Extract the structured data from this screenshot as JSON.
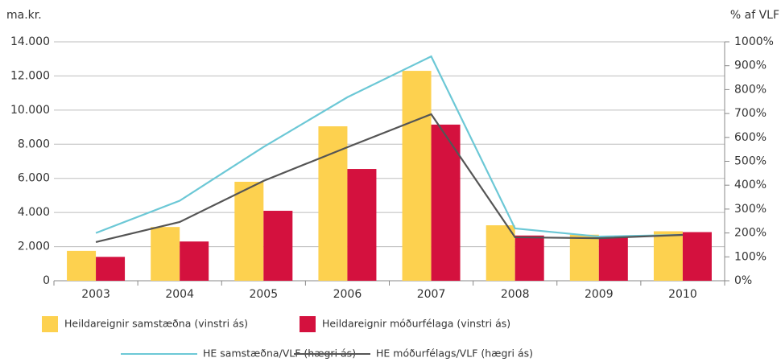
{
  "chart_data": {
    "type": "bar-line",
    "y_label": "ma.kr.",
    "y2_label": "% af VLF",
    "categories": [
      "2003",
      "2004",
      "2005",
      "2006",
      "2007",
      "2008",
      "2009",
      "2010"
    ],
    "series": [
      {
        "name": "Heildareignir samstæðna (vinstri ás)",
        "type": "bar",
        "color": "#fdd14f",
        "values": [
          1750,
          3150,
          5800,
          9050,
          12300,
          3250,
          2700,
          2900
        ]
      },
      {
        "name": "Heildareignir móðurfélaga (vinstri ás)",
        "type": "bar",
        "color": "#d4113e",
        "values": [
          1400,
          2300,
          4100,
          6550,
          9150,
          2650,
          2600,
          2850
        ]
      },
      {
        "name": "HE samstæðna/VLF (hægri ás)",
        "type": "line",
        "axis": "y2",
        "color": "#6cc8d6",
        "values": [
          200,
          335,
          560,
          768,
          939,
          219,
          185,
          192
        ]
      },
      {
        "name": "HE móðurfélags/VLF (hægri ás)",
        "type": "line",
        "axis": "y2",
        "color": "#555555",
        "values": [
          162,
          246,
          418,
          559,
          697,
          182,
          178,
          192
        ]
      }
    ],
    "ylim": [
      0,
      14000
    ],
    "yticks": [
      0,
      {
        "value": 2000,
        "label": "2.000"
      },
      {
        "value": 4000,
        "label": "4.000"
      },
      {
        "value": 6000,
        "label": "6.000"
      },
      {
        "value": 8000,
        "label": "8.000"
      },
      {
        "value": 10000,
        "label": "10.000"
      },
      {
        "value": 12000,
        "label": "12.000"
      },
      {
        "value": 14000,
        "label": "14.000"
      }
    ],
    "y2lim": [
      0,
      1000
    ],
    "y2ticks": [
      {
        "value": 0,
        "label": "0%"
      },
      {
        "value": 100,
        "label": "100%"
      },
      {
        "value": 200,
        "label": "200%"
      },
      {
        "value": 300,
        "label": "300%"
      },
      {
        "value": 400,
        "label": "400%"
      },
      {
        "value": 500,
        "label": "500%"
      },
      {
        "value": 600,
        "label": "600%"
      },
      {
        "value": 700,
        "label": "700%"
      },
      {
        "value": 800,
        "label": "800%"
      },
      {
        "value": 900,
        "label": "900%"
      },
      {
        "value": 1000,
        "label": "1000%"
      }
    ],
    "grid": true
  }
}
